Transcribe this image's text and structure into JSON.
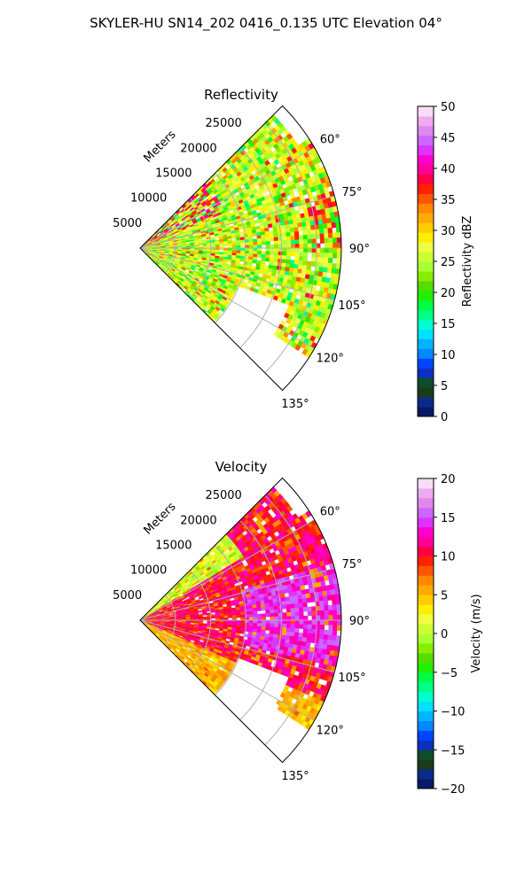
{
  "figure": {
    "title": "SKYLER-HU  SN14_202  0416_0.135 UTC Elevation 04°"
  },
  "chart_data": [
    {
      "type": "polar-sector",
      "title": "Reflectivity",
      "radial_label": "Meters",
      "radial_ticks": [
        5000,
        10000,
        15000,
        20000,
        25000
      ],
      "radial_tick_labels": [
        "5000",
        "10000",
        "15000",
        "20000",
        "25000"
      ],
      "r_max_m": 28500,
      "angle_range_deg": [
        45,
        135
      ],
      "angle_ticks": [
        60,
        75,
        90,
        105,
        120,
        135
      ],
      "angle_tick_labels": [
        "60°",
        "75°",
        "90°",
        "105°",
        "120°",
        "135°"
      ],
      "grid": true,
      "colorbar": {
        "label": "Reflectivity dBZ",
        "min": 0,
        "max": 50,
        "ticks": [
          0,
          5,
          10,
          15,
          20,
          25,
          30,
          35,
          40,
          45,
          50
        ],
        "tick_labels": [
          "0",
          "5",
          "10",
          "15",
          "20",
          "25",
          "30",
          "35",
          "40",
          "45",
          "50"
        ],
        "colors": [
          "#081a66",
          "#0c2a8a",
          "#1b3c1b",
          "#0f4d2a",
          "#0d2fbf",
          "#0044ff",
          "#0088ff",
          "#00b4ff",
          "#00e0ff",
          "#00ffcc",
          "#00ff88",
          "#00ff44",
          "#22ee00",
          "#55dd00",
          "#88ee00",
          "#aaff33",
          "#ccff33",
          "#eeff44",
          "#ffee00",
          "#ffcc00",
          "#ffaa00",
          "#ff8800",
          "#ff5500",
          "#ff2200",
          "#ff0044",
          "#ff0099",
          "#ff00cc",
          "#dd33ff",
          "#cc66ff",
          "#e088ee",
          "#f0aaf0",
          "#f8ddf8"
        ]
      },
      "field_description": "mostly 15–30 dBZ with embedded cores up to ~40 dBZ"
    },
    {
      "type": "polar-sector",
      "title": "Velocity",
      "radial_label": "Meters",
      "radial_ticks": [
        5000,
        10000,
        15000,
        20000,
        25000
      ],
      "radial_tick_labels": [
        "5000",
        "10000",
        "15000",
        "20000",
        "25000"
      ],
      "r_max_m": 28500,
      "angle_range_deg": [
        45,
        135
      ],
      "angle_ticks": [
        60,
        75,
        90,
        105,
        120,
        135
      ],
      "angle_tick_labels": [
        "60°",
        "75°",
        "90°",
        "105°",
        "120°",
        "135°"
      ],
      "grid": true,
      "colorbar": {
        "label": "Velocity (m/s)",
        "min": -20,
        "max": 20,
        "ticks": [
          -20,
          -15,
          -10,
          -5,
          0,
          5,
          10,
          15,
          20
        ],
        "tick_labels": [
          "−20",
          "−15",
          "−10",
          "−5",
          "0",
          "5",
          "10",
          "15",
          "20"
        ],
        "colors": [
          "#081a66",
          "#0c2a8a",
          "#1b3c1b",
          "#0f4d2a",
          "#0d2fbf",
          "#0044ff",
          "#0088ff",
          "#00b4ff",
          "#00e0ff",
          "#00ffcc",
          "#00ff88",
          "#00ff44",
          "#22ee00",
          "#55dd00",
          "#88ee00",
          "#aaff33",
          "#ccff33",
          "#eeff44",
          "#ffee00",
          "#ffcc00",
          "#ffaa00",
          "#ff8800",
          "#ff5500",
          "#ff2200",
          "#ff0044",
          "#ff0099",
          "#ff00cc",
          "#dd33ff",
          "#cc66ff",
          "#e088ee",
          "#f0aaf0",
          "#f8ddf8"
        ]
      },
      "field_description": "mostly +5 to +15 m/s outbound, near 0 m/s along the near-range northern edge"
    }
  ]
}
